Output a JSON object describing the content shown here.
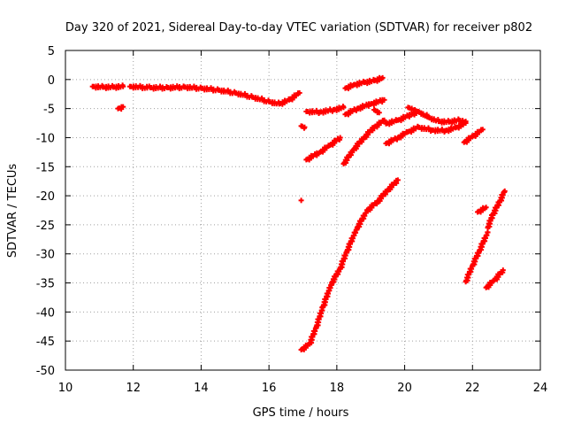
{
  "chart_data": {
    "type": "scatter",
    "title": "Day 320 of 2021, Sidereal Day-to-day VTEC variation (SDTVAR) for receiver p802",
    "xlabel": "GPS time / hours",
    "ylabel": "SDTVAR / TECUs",
    "xlim": [
      10,
      24
    ],
    "ylim": [
      -50,
      5
    ],
    "xticks": [
      10,
      12,
      14,
      16,
      18,
      20,
      22,
      24
    ],
    "yticks": [
      5,
      0,
      -5,
      -10,
      -15,
      -20,
      -25,
      -30,
      -35,
      -40,
      -45,
      -50
    ],
    "grid": true,
    "legend": "none",
    "marker": "plus",
    "color": "#ff0000",
    "tracks": [
      {
        "points": [
          [
            10.8,
            -1.2
          ],
          [
            11.1,
            -1.3
          ],
          [
            11.4,
            -1.3
          ],
          [
            11.7,
            -1.2
          ]
        ]
      },
      {
        "points": [
          [
            11.55,
            -5.0
          ],
          [
            11.7,
            -4.7
          ]
        ]
      },
      {
        "points": [
          [
            11.9,
            -1.2
          ],
          [
            12.5,
            -1.4
          ],
          [
            13.0,
            -1.4
          ],
          [
            13.5,
            -1.3
          ],
          [
            14.0,
            -1.5
          ],
          [
            14.5,
            -1.8
          ],
          [
            15.0,
            -2.3
          ],
          [
            15.5,
            -3.0
          ],
          [
            16.0,
            -3.8
          ],
          [
            16.3,
            -4.2
          ],
          [
            16.6,
            -3.5
          ],
          [
            16.9,
            -2.3
          ]
        ]
      },
      {
        "points": [
          [
            16.95,
            -8.0
          ],
          [
            17.05,
            -8.2
          ]
        ]
      },
      {
        "points": [
          [
            16.95,
            -20.8
          ]
        ]
      },
      {
        "points": [
          [
            16.95,
            -46.5
          ],
          [
            17.2,
            -45.5
          ],
          [
            17.4,
            -42.5
          ],
          [
            17.6,
            -39.0
          ],
          [
            17.85,
            -35.0
          ],
          [
            18.1,
            -32.5
          ],
          [
            18.3,
            -29.5
          ],
          [
            18.6,
            -25.5
          ],
          [
            18.9,
            -22.5
          ],
          [
            19.2,
            -21.0
          ],
          [
            19.5,
            -19.0
          ],
          [
            19.8,
            -17.3
          ]
        ]
      },
      {
        "points": [
          [
            17.1,
            -5.5
          ],
          [
            17.5,
            -5.6
          ],
          [
            17.9,
            -5.2
          ],
          [
            18.2,
            -4.8
          ]
        ]
      },
      {
        "points": [
          [
            17.1,
            -13.8
          ],
          [
            17.5,
            -12.5
          ],
          [
            17.8,
            -11.3
          ],
          [
            18.1,
            -10.0
          ]
        ]
      },
      {
        "points": [
          [
            18.2,
            -14.5
          ],
          [
            18.5,
            -12.0
          ],
          [
            18.8,
            -10.0
          ],
          [
            19.1,
            -8.2
          ],
          [
            19.4,
            -7.0
          ]
        ]
      },
      {
        "points": [
          [
            18.25,
            -6.0
          ],
          [
            18.6,
            -5.0
          ],
          [
            19.0,
            -4.2
          ],
          [
            19.4,
            -3.5
          ]
        ]
      },
      {
        "points": [
          [
            18.25,
            -1.5
          ],
          [
            18.5,
            -0.9
          ],
          [
            18.8,
            -0.5
          ],
          [
            19.1,
            -0.2
          ],
          [
            19.35,
            0.3
          ]
        ]
      },
      {
        "points": [
          [
            19.1,
            -5.2
          ],
          [
            19.25,
            -5.7
          ]
        ]
      },
      {
        "points": [
          [
            19.45,
            -7.6
          ],
          [
            19.8,
            -7.0
          ],
          [
            20.2,
            -6.0
          ],
          [
            20.4,
            -5.5
          ],
          [
            20.7,
            -6.5
          ],
          [
            21.0,
            -7.2
          ],
          [
            21.3,
            -7.3
          ],
          [
            21.6,
            -7.0
          ],
          [
            21.8,
            -7.2
          ]
        ]
      },
      {
        "points": [
          [
            19.45,
            -11.0
          ],
          [
            19.8,
            -10.0
          ],
          [
            20.1,
            -9.0
          ],
          [
            20.4,
            -8.2
          ],
          [
            20.8,
            -8.7
          ],
          [
            21.2,
            -8.8
          ],
          [
            21.5,
            -8.3
          ],
          [
            21.8,
            -7.5
          ]
        ]
      },
      {
        "points": [
          [
            20.1,
            -4.8
          ],
          [
            20.3,
            -5.2
          ]
        ]
      },
      {
        "points": [
          [
            21.75,
            -10.8
          ],
          [
            22.0,
            -9.8
          ],
          [
            22.3,
            -8.6
          ]
        ]
      },
      {
        "points": [
          [
            21.8,
            -34.8
          ],
          [
            22.0,
            -32.0
          ],
          [
            22.2,
            -29.5
          ],
          [
            22.45,
            -26.3
          ]
        ]
      },
      {
        "points": [
          [
            22.15,
            -22.8
          ],
          [
            22.4,
            -22.0
          ]
        ]
      },
      {
        "points": [
          [
            22.45,
            -25.5
          ],
          [
            22.6,
            -23.2
          ],
          [
            22.8,
            -21.0
          ],
          [
            22.95,
            -19.2
          ]
        ]
      },
      {
        "points": [
          [
            22.4,
            -35.8
          ],
          [
            22.65,
            -34.5
          ],
          [
            22.9,
            -32.8
          ]
        ]
      }
    ]
  }
}
